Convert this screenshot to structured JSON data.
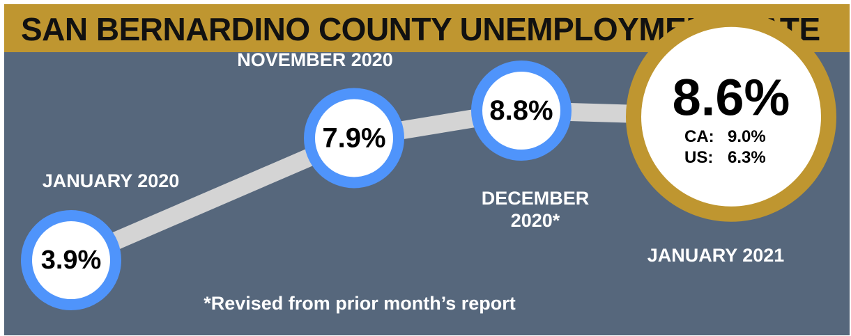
{
  "title": "SAN BERNARDINO COUNTY UNEMPLOYMENT RATE",
  "footnote": "*Revised from prior month’s report",
  "colors": {
    "background": "#56677c",
    "title_bar": "#bf9630",
    "ring_blue": "#4f94fb",
    "ring_gold": "#bf9630",
    "connector": "#d4d4d4"
  },
  "comparisons": [
    {
      "label": "CA:",
      "value": "9.0%"
    },
    {
      "label": "US:",
      "value": "6.3%"
    }
  ],
  "chart_data": {
    "type": "line",
    "title": "SAN BERNARDINO COUNTY UNEMPLOYMENT RATE",
    "categories": [
      "JANUARY 2020",
      "NOVEMBER 2020",
      "DECEMBER 2020*",
      "JANUARY 2021"
    ],
    "values": [
      3.9,
      7.9,
      8.8,
      8.6
    ],
    "value_labels": [
      "3.9%",
      "7.9%",
      "8.8%",
      "8.6%"
    ],
    "unit": "%",
    "ylim": [
      3.9,
      8.8
    ],
    "grid": false,
    "legend": "none"
  }
}
